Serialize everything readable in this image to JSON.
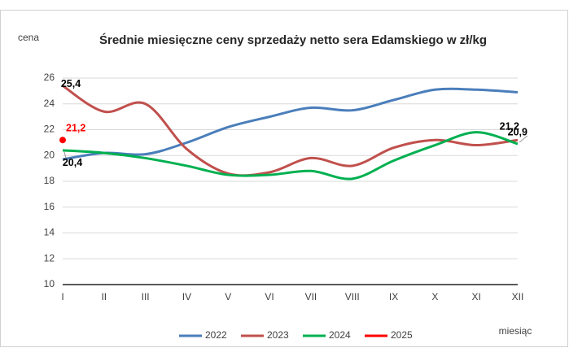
{
  "chart_data": {
    "type": "line",
    "title": "Średnie miesięczne ceny sprzedaży netto sera Edamskiego w zł/kg",
    "y_label": "cena",
    "x_label": "miesiąc",
    "categories": [
      "I",
      "II",
      "III",
      "IV",
      "V",
      "VI",
      "VII",
      "VIII",
      "IX",
      "X",
      "XI",
      "XII"
    ],
    "series": [
      {
        "name": "2022",
        "color": "#4a7ebb",
        "values": [
          19.7,
          20.2,
          20.1,
          21.0,
          22.2,
          23.0,
          23.7,
          23.5,
          24.3,
          25.1,
          25.1,
          24.9
        ],
        "value_labels": [
          null,
          null,
          null,
          null,
          null,
          null,
          null,
          null,
          null,
          null,
          null,
          null
        ]
      },
      {
        "name": "2023",
        "color": "#c0504d",
        "values": [
          25.4,
          23.4,
          24.0,
          20.5,
          18.6,
          18.7,
          19.8,
          19.2,
          20.6,
          21.2,
          20.8,
          21.2
        ],
        "value_labels": [
          "25,4",
          null,
          null,
          null,
          null,
          null,
          null,
          null,
          null,
          null,
          null,
          "21,2"
        ]
      },
      {
        "name": "2024",
        "color": "#00b050",
        "values": [
          20.4,
          20.2,
          19.8,
          19.2,
          18.5,
          18.5,
          18.8,
          18.2,
          19.6,
          20.8,
          21.8,
          20.9
        ],
        "value_labels": [
          "20,4",
          null,
          null,
          null,
          null,
          null,
          null,
          null,
          null,
          null,
          null,
          "20,9"
        ]
      },
      {
        "name": "2025",
        "color": "#ff0000",
        "values": [
          21.2,
          null,
          null,
          null,
          null,
          null,
          null,
          null,
          null,
          null,
          null,
          null
        ],
        "value_labels": [
          "21,2",
          null,
          null,
          null,
          null,
          null,
          null,
          null,
          null,
          null,
          null,
          null
        ]
      }
    ],
    "ylim": [
      10,
      26
    ],
    "yticks": [
      10,
      12,
      14,
      16,
      18,
      20,
      22,
      24,
      26
    ],
    "grid": true
  }
}
